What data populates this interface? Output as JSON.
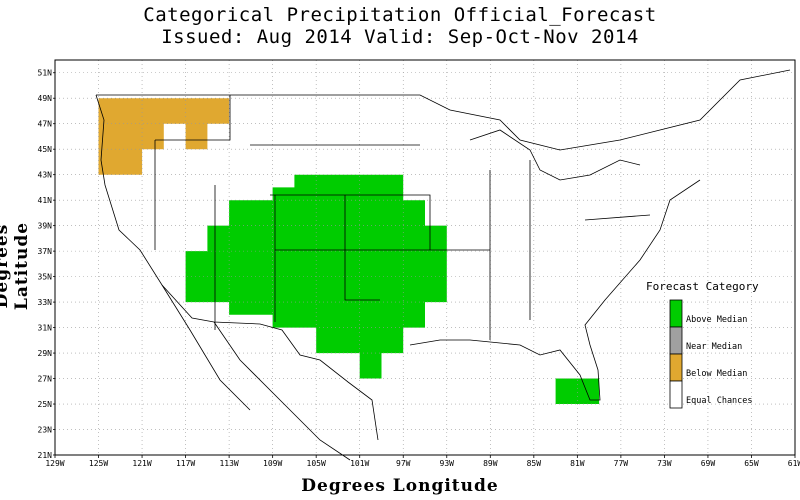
{
  "title_line1": "Categorical Precipitation Official_Forecast",
  "title_line2": "Issued: Aug 2014 Valid: Sep-Oct-Nov 2014",
  "x_axis_label": "Degrees Longitude",
  "y_axis_label": "Degrees Latitude",
  "x_ticks": [
    "129W",
    "125W",
    "121W",
    "117W",
    "113W",
    "109W",
    "105W",
    "101W",
    "97W",
    "93W",
    "89W",
    "85W",
    "81W",
    "77W",
    "73W",
    "69W",
    "65W",
    "61W"
  ],
  "x_tick_values": [
    -129,
    -125,
    -121,
    -117,
    -113,
    -109,
    -105,
    -101,
    -97,
    -93,
    -89,
    -85,
    -81,
    -77,
    -73,
    -69,
    -65,
    -61
  ],
  "y_ticks": [
    "21N",
    "23N",
    "25N",
    "27N",
    "29N",
    "31N",
    "33N",
    "35N",
    "37N",
    "39N",
    "41N",
    "43N",
    "45N",
    "47N",
    "49N",
    "51N"
  ],
  "y_tick_values": [
    21,
    23,
    25,
    27,
    29,
    31,
    33,
    35,
    37,
    39,
    41,
    43,
    45,
    47,
    49,
    51
  ],
  "extent": {
    "lon_min": -129,
    "lon_max": -61,
    "lat_min": 21,
    "lat_max": 52
  },
  "legend": {
    "title": "Forecast Category",
    "items": [
      {
        "label": "Above Median",
        "color": "#00cc00"
      },
      {
        "label": "Near Median",
        "color": "#a0a0a0"
      },
      {
        "label": "Below Median",
        "color": "#e0a830"
      },
      {
        "label": "Equal Chances",
        "color": "#ffffff"
      }
    ]
  },
  "regions": [
    {
      "category": "Below Median",
      "color": "#e0a830",
      "polygon": [
        [
          -125,
          49
        ],
        [
          -113,
          49
        ],
        [
          -113,
          47
        ],
        [
          -115,
          47
        ],
        [
          -115,
          45
        ],
        [
          -117,
          45
        ],
        [
          -117,
          47
        ],
        [
          -119,
          47
        ],
        [
          -119,
          45
        ],
        [
          -121,
          45
        ],
        [
          -121,
          43
        ],
        [
          -125,
          43
        ]
      ]
    },
    {
      "category": "Above Median",
      "color": "#00cc00",
      "polygon": [
        [
          -107,
          43
        ],
        [
          -97,
          43
        ],
        [
          -97,
          41
        ],
        [
          -95,
          41
        ],
        [
          -95,
          39
        ],
        [
          -93,
          39
        ],
        [
          -93,
          33
        ],
        [
          -95,
          33
        ],
        [
          -95,
          31
        ],
        [
          -97,
          31
        ],
        [
          -97,
          29
        ],
        [
          -99,
          29
        ],
        [
          -99,
          27
        ],
        [
          -101,
          27
        ],
        [
          -101,
          29
        ],
        [
          -105,
          29
        ],
        [
          -105,
          31
        ],
        [
          -109,
          31
        ],
        [
          -109,
          32
        ],
        [
          -113,
          32
        ],
        [
          -113,
          33
        ],
        [
          -117,
          33
        ],
        [
          -117,
          37
        ],
        [
          -115,
          37
        ],
        [
          -115,
          39
        ],
        [
          -113,
          39
        ],
        [
          -113,
          41
        ],
        [
          -109,
          41
        ],
        [
          -109,
          42
        ],
        [
          -107,
          42
        ]
      ]
    },
    {
      "category": "Above Median",
      "color": "#00cc00",
      "polygon": [
        [
          -83,
          27
        ],
        [
          -79,
          27
        ],
        [
          -79,
          25
        ],
        [
          -83,
          25
        ]
      ]
    }
  ]
}
